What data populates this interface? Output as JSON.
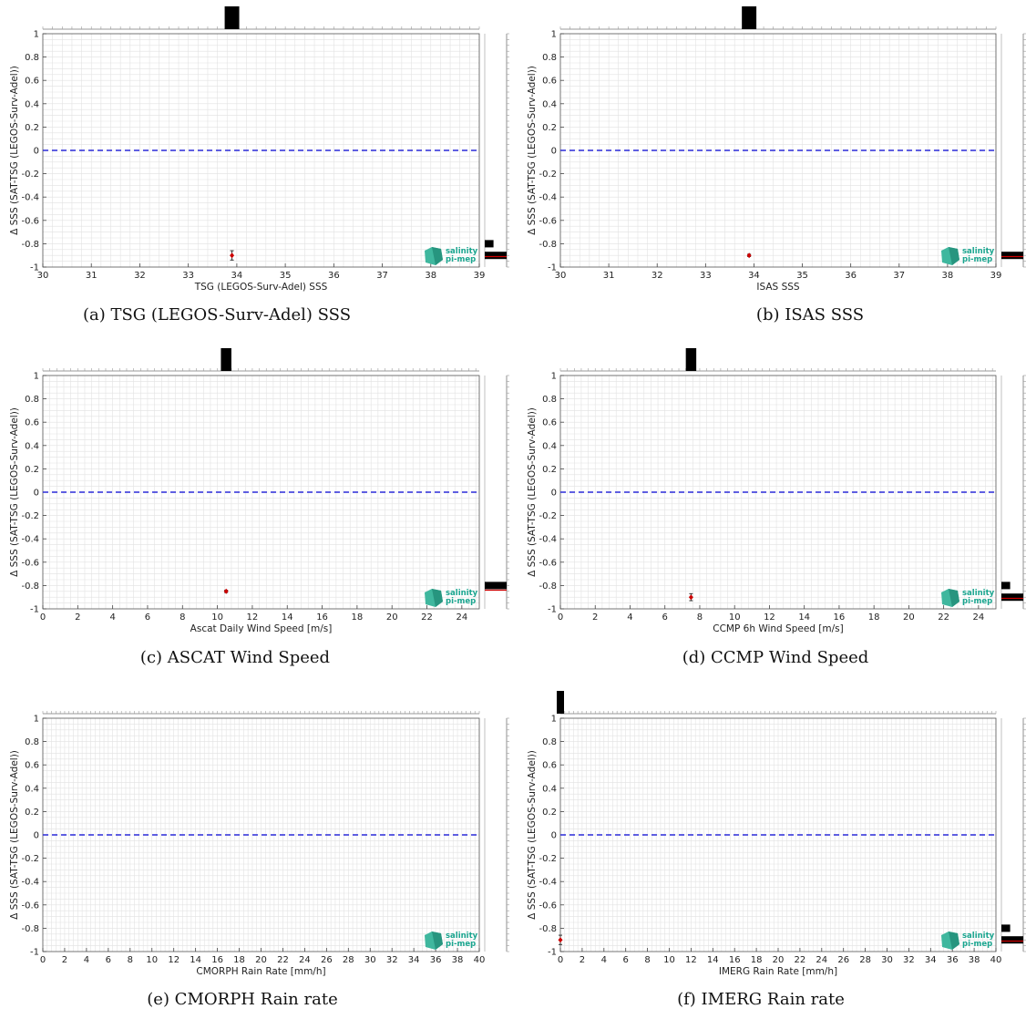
{
  "logo": {
    "line1": "salinity",
    "line2": "pi-mep",
    "color": "#1aa58f"
  },
  "colors": {
    "zero_line": "#2a2ad8",
    "point": "#cc0000",
    "hist": "#000000",
    "grid": "#e2e2e2"
  },
  "chart_data": [
    {
      "type": "scatter",
      "caption": "(a) TSG (LEGOS-Surv-Adel) SSS",
      "xlabel": "TSG (LEGOS-Surv-Adel) SSS",
      "ylabel": "Δ SSS (SAT-TSG (LEGOS-Surv-Adel))",
      "xlim": [
        30,
        39
      ],
      "ylim": [
        -1,
        1
      ],
      "xticks": [
        30,
        31,
        32,
        33,
        34,
        35,
        36,
        37,
        38,
        39
      ],
      "yticks": [
        1,
        0.8,
        0.6,
        0.4,
        0.2,
        0,
        -0.2,
        -0.4,
        -0.6,
        -0.8,
        -1
      ],
      "reference_line": 0,
      "points": [
        {
          "x": 33.9,
          "y": -0.9,
          "err": 0.04
        }
      ],
      "top_hist": [
        {
          "x": 33.9,
          "height": 1
        }
      ],
      "side_hist": [
        {
          "y": -0.8,
          "height": 0.4
        },
        {
          "y": -0.9,
          "height": 1
        }
      ],
      "side_median": -0.91
    },
    {
      "type": "scatter",
      "caption": "(b) ISAS SSS",
      "xlabel": "ISAS SSS",
      "ylabel": "Δ SSS (SAT-TSG (LEGOS-Surv-Adel))",
      "xlim": [
        30,
        39
      ],
      "ylim": [
        -1,
        1
      ],
      "xticks": [
        30,
        31,
        32,
        33,
        34,
        35,
        36,
        37,
        38,
        39
      ],
      "yticks": [
        1,
        0.8,
        0.6,
        0.4,
        0.2,
        0,
        -0.2,
        -0.4,
        -0.6,
        -0.8,
        -1
      ],
      "reference_line": 0,
      "points": [
        {
          "x": 33.9,
          "y": -0.9,
          "err": 0.01
        }
      ],
      "top_hist": [
        {
          "x": 33.9,
          "height": 1
        }
      ],
      "side_hist": [
        {
          "y": -0.9,
          "height": 1
        }
      ],
      "side_median": -0.91
    },
    {
      "type": "scatter",
      "caption": "(c) ASCAT Wind Speed",
      "xlabel": "Ascat Daily Wind Speed [m/s]",
      "ylabel": "Δ SSS (SAT-TSG (LEGOS-Surv-Adel))",
      "xlim": [
        0,
        25
      ],
      "ylim": [
        -1,
        1
      ],
      "xticks": [
        0,
        2,
        4,
        6,
        8,
        10,
        12,
        14,
        16,
        18,
        20,
        22,
        24
      ],
      "yticks": [
        1,
        0.8,
        0.6,
        0.4,
        0.2,
        0,
        -0.2,
        -0.4,
        -0.6,
        -0.8,
        -1
      ],
      "reference_line": 0,
      "points": [
        {
          "x": 10.5,
          "y": -0.85,
          "err": 0.01
        }
      ],
      "top_hist": [
        {
          "x": 10.5,
          "height": 1
        }
      ],
      "side_hist": [
        {
          "y": -0.8,
          "height": 1
        }
      ],
      "side_median": -0.84
    },
    {
      "type": "scatter",
      "caption": "(d) CCMP Wind Speed",
      "xlabel": "CCMP 6h Wind Speed [m/s]",
      "ylabel": "Δ SSS (SAT-TSG (LEGOS-Surv-Adel))",
      "xlim": [
        0,
        25
      ],
      "ylim": [
        -1,
        1
      ],
      "xticks": [
        0,
        2,
        4,
        6,
        8,
        10,
        12,
        14,
        16,
        18,
        20,
        22,
        24
      ],
      "yticks": [
        1,
        0.8,
        0.6,
        0.4,
        0.2,
        0,
        -0.2,
        -0.4,
        -0.6,
        -0.8,
        -1
      ],
      "reference_line": 0,
      "points": [
        {
          "x": 7.5,
          "y": -0.9,
          "err": 0.03
        }
      ],
      "top_hist": [
        {
          "x": 7.5,
          "height": 1
        }
      ],
      "side_hist": [
        {
          "y": -0.8,
          "height": 0.4
        },
        {
          "y": -0.9,
          "height": 1
        }
      ],
      "side_median": -0.91
    },
    {
      "type": "scatter",
      "caption": "(e) CMORPH Rain rate",
      "xlabel": "CMORPH Rain Rate [mm/h]",
      "ylabel": "Δ SSS (SAT-TSG (LEGOS-Surv-Adel))",
      "xlim": [
        0,
        40
      ],
      "ylim": [
        -1,
        1
      ],
      "xticks": [
        0,
        2,
        4,
        6,
        8,
        10,
        12,
        14,
        16,
        18,
        20,
        22,
        24,
        26,
        28,
        30,
        32,
        34,
        36,
        38,
        40
      ],
      "yticks": [
        1,
        0.8,
        0.6,
        0.4,
        0.2,
        0,
        -0.2,
        -0.4,
        -0.6,
        -0.8,
        -1
      ],
      "reference_line": 0,
      "points": [],
      "top_hist": [],
      "side_hist": [],
      "side_median": null
    },
    {
      "type": "scatter",
      "caption": "(f) IMERG Rain rate",
      "xlabel": "IMERG Rain Rate [mm/h]",
      "ylabel": "Δ SSS (SAT-TSG (LEGOS-Surv-Adel))",
      "xlim": [
        0,
        40
      ],
      "ylim": [
        -1,
        1
      ],
      "xticks": [
        0,
        2,
        4,
        6,
        8,
        10,
        12,
        14,
        16,
        18,
        20,
        22,
        24,
        26,
        28,
        30,
        32,
        34,
        36,
        38,
        40
      ],
      "yticks": [
        1,
        0.8,
        0.6,
        0.4,
        0.2,
        0,
        -0.2,
        -0.4,
        -0.6,
        -0.8,
        -1
      ],
      "reference_line": 0,
      "points": [
        {
          "x": 0,
          "y": -0.9,
          "err": 0.04
        }
      ],
      "top_hist": [
        {
          "x": 0,
          "height": 1
        }
      ],
      "side_hist": [
        {
          "y": -0.8,
          "height": 0.4
        },
        {
          "y": -0.9,
          "height": 1
        }
      ],
      "side_median": -0.91
    }
  ]
}
